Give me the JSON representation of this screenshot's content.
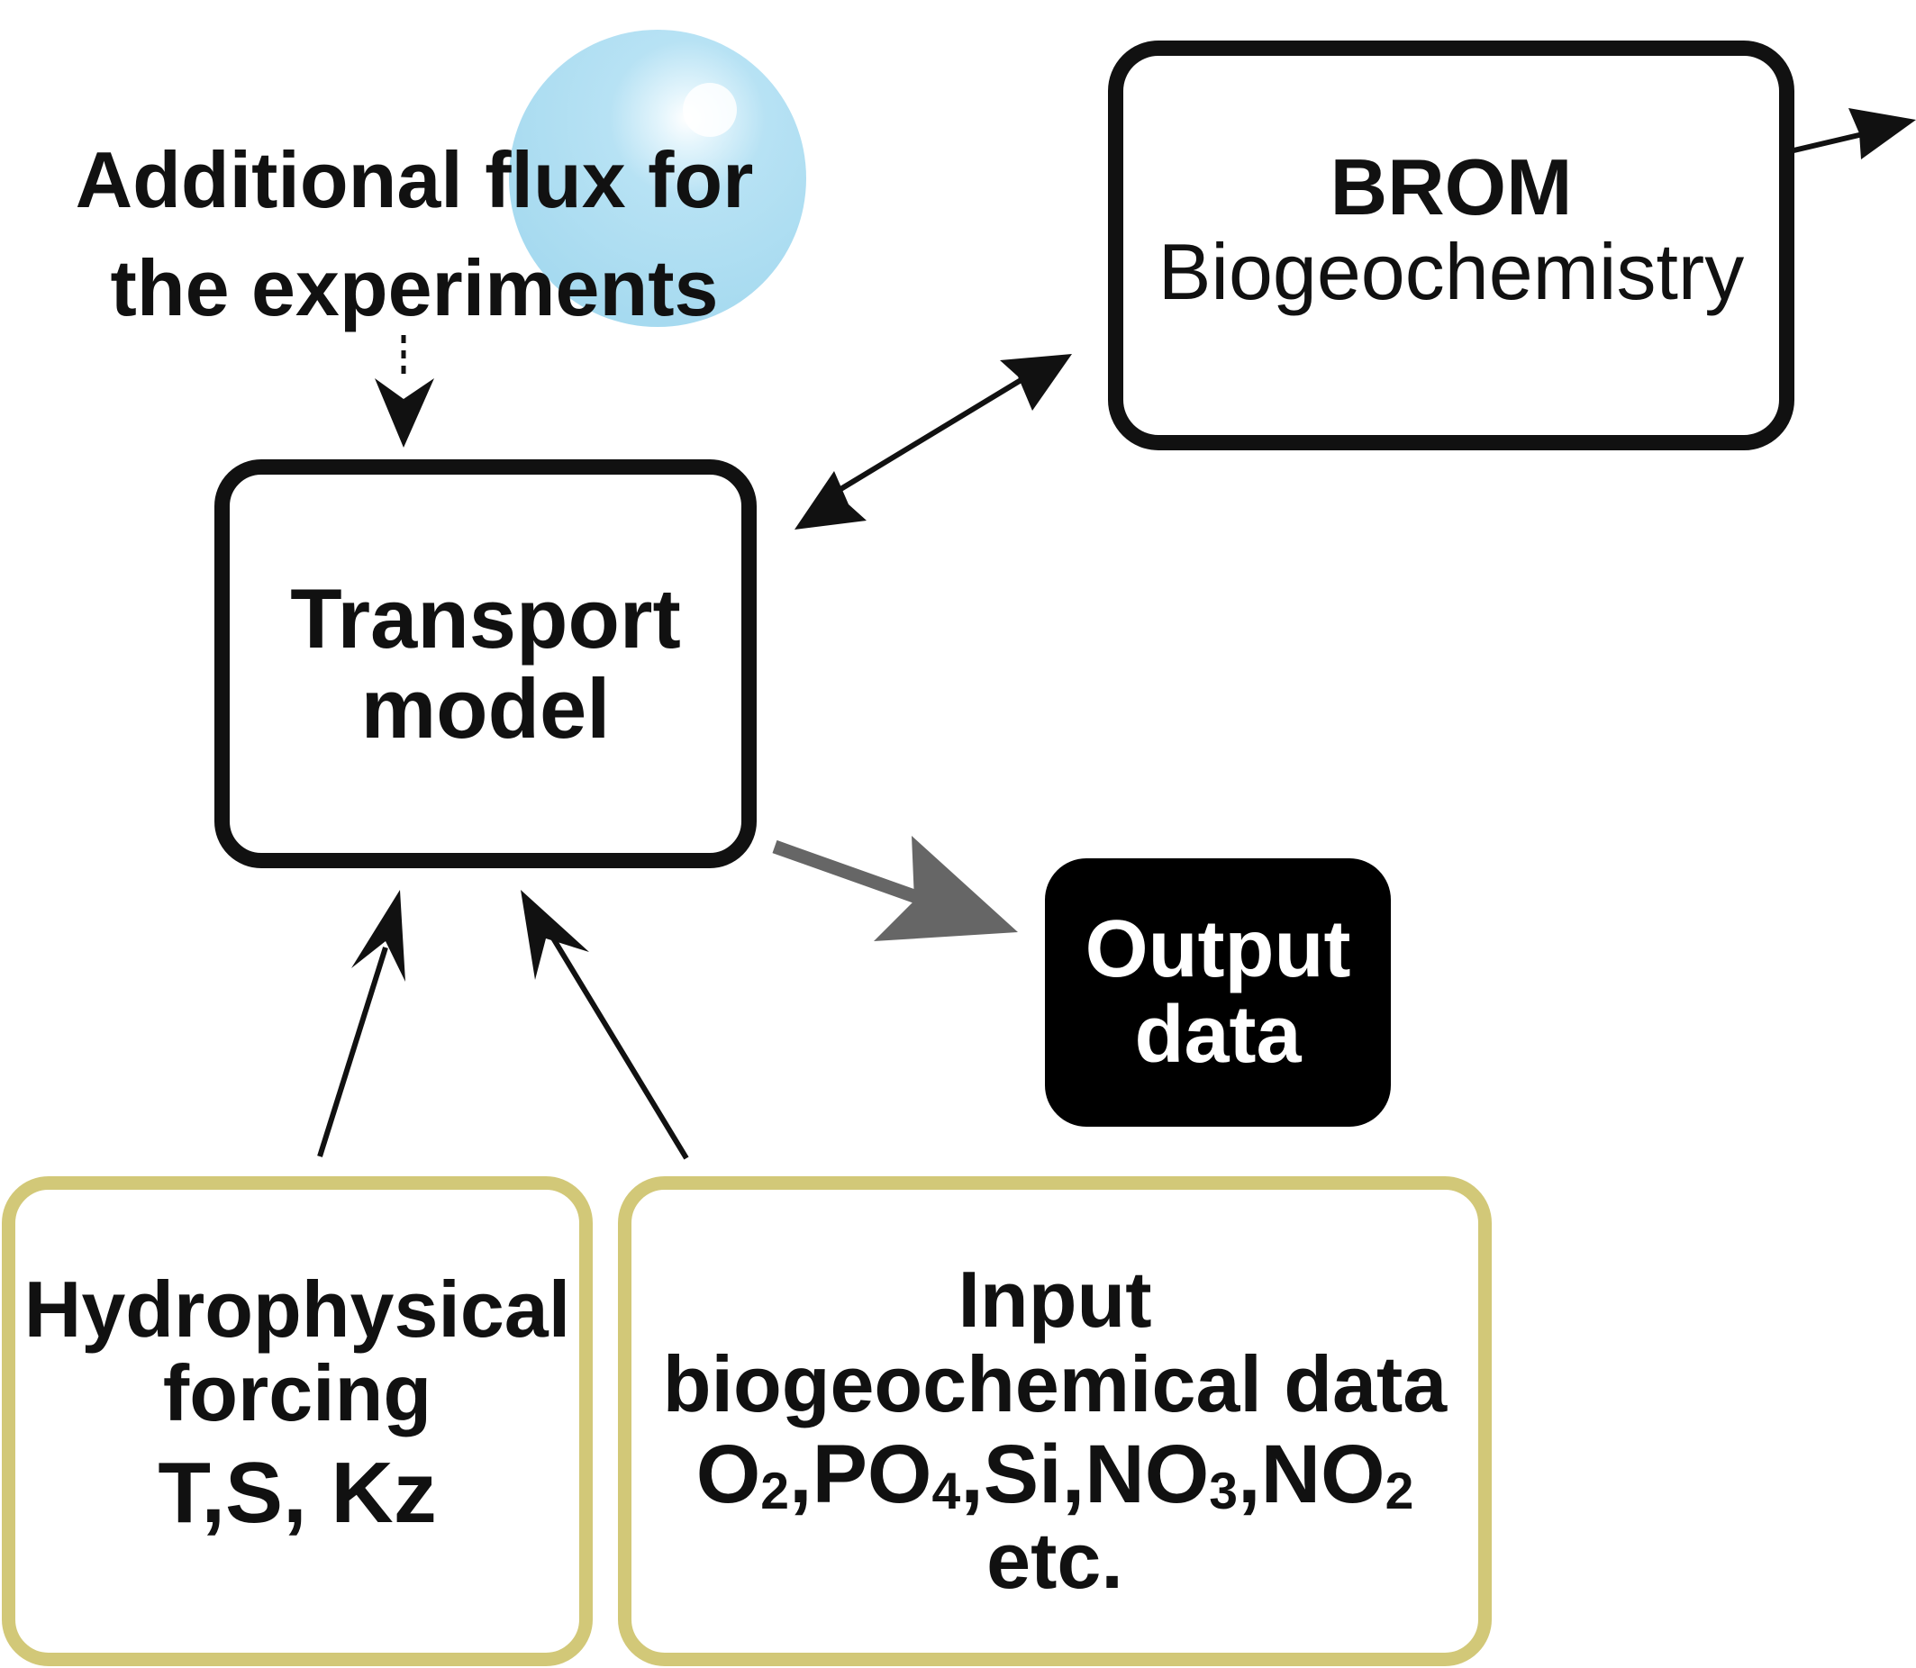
{
  "flux_label": {
    "line1": "Additional flux for",
    "line2": "the experiments"
  },
  "brom": {
    "title": "BROM",
    "subtitle": "Biogeochemistry"
  },
  "transport": {
    "line1": "Transport",
    "line2": "model"
  },
  "output": {
    "line1": "Output",
    "line2": "data"
  },
  "hydro": {
    "line1": "Hydrophysical",
    "line2": "forcing",
    "vars": "T,S, Kz"
  },
  "input": {
    "line1": "Input",
    "line2": "biogeochemical data",
    "species": [
      {
        "base": "O",
        "sub": "2"
      },
      {
        "base": "PO",
        "sub": "4"
      },
      {
        "base": "Si",
        "sub": ""
      },
      {
        "base": "NO",
        "sub": "3"
      },
      {
        "base": "NO",
        "sub": "2"
      }
    ],
    "line4": "etc."
  },
  "colors": {
    "input_border": "#d2c878",
    "bubble": "#a9dcf1",
    "output_fill": "#000000",
    "output_arrow": "#666666",
    "ink": "#111111"
  }
}
